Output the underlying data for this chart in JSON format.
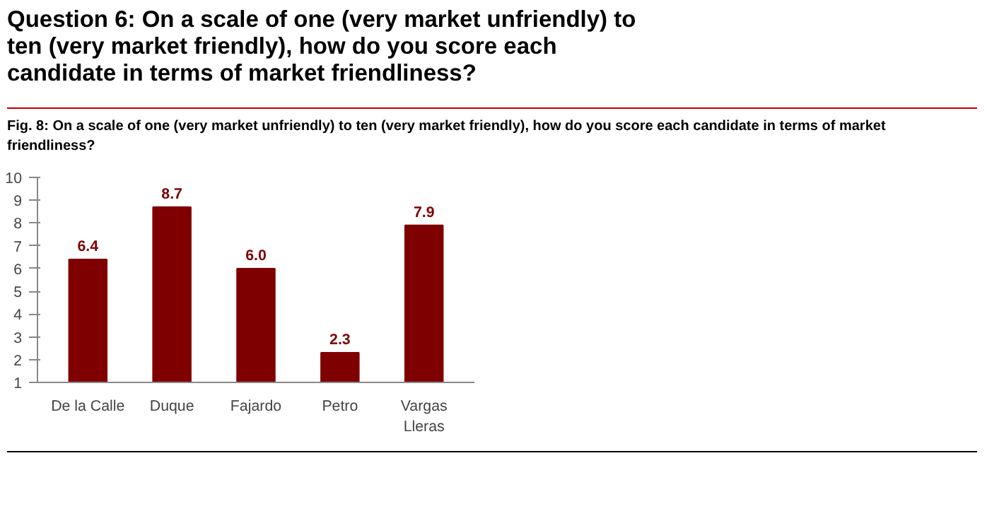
{
  "chart_data": {
    "type": "bar",
    "title": "Question 6: On a scale of one (very market unfriendly) to ten (very market friendly), how do you score each candidate in terms of market friendliness?",
    "subtitle": "Fig. 8: On a scale of one (very market unfriendly) to ten (very market friendly), how do you score each candidate in terms of market friendliness?",
    "categories": [
      "De la Calle",
      "Duque",
      "Fajardo",
      "Petro",
      "Vargas Lleras"
    ],
    "values": [
      6.4,
      8.7,
      6.0,
      2.3,
      7.9
    ],
    "color": "#7f0000",
    "ylim": [
      1,
      10
    ],
    "yticks": [
      1,
      2,
      3,
      4,
      5,
      6,
      7,
      8,
      9,
      10
    ],
    "value_labels": [
      "6.4",
      "8.7",
      "6.0",
      "2.3",
      "7.9"
    ],
    "grid": false
  }
}
